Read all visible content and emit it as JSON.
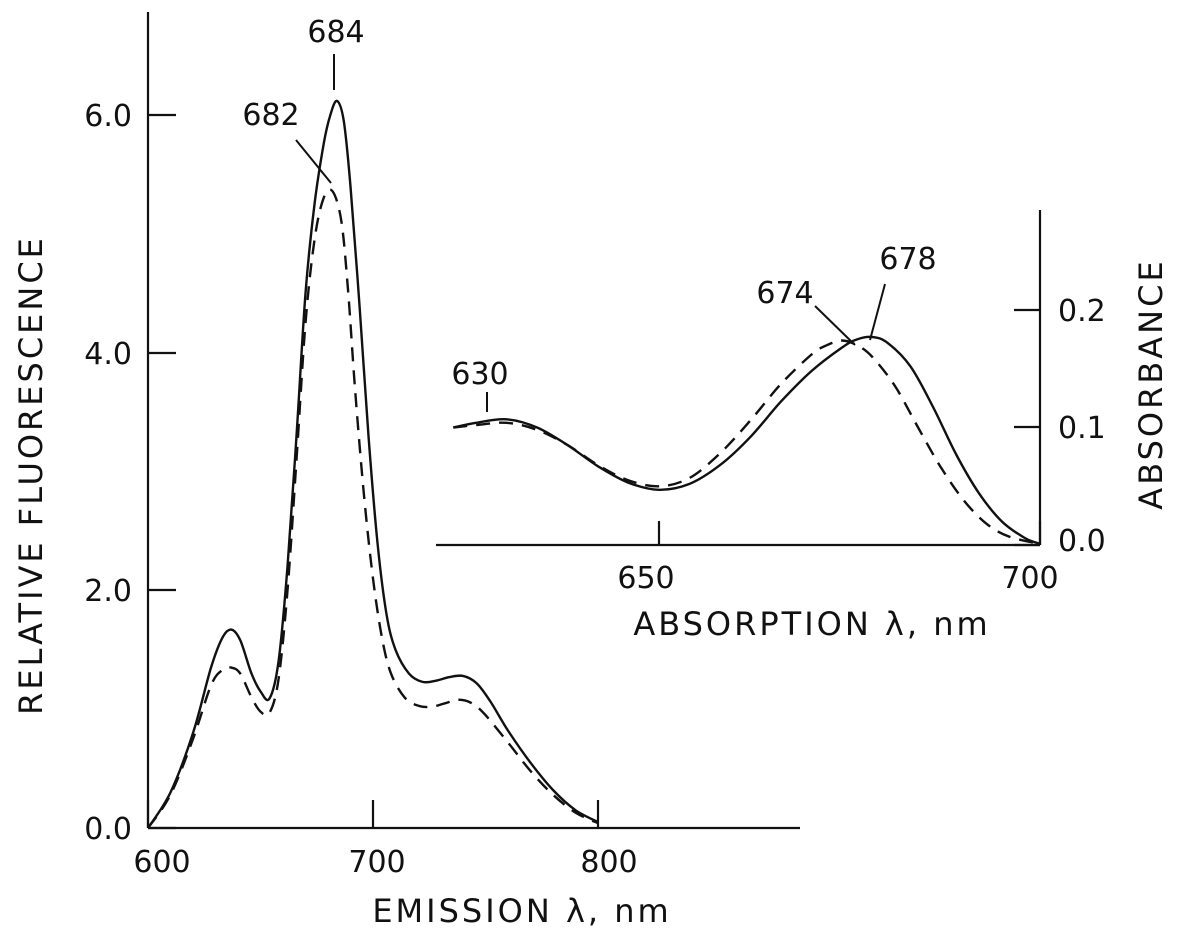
{
  "chart_data": [
    {
      "type": "line",
      "id": "emission",
      "xlabel": "EMISSION λ, nm",
      "ylabel": "RELATIVE FLUORESCENCE",
      "xlim": [
        600,
        870
      ],
      "ylim": [
        0,
        6.6
      ],
      "xticks": [
        600,
        700,
        800
      ],
      "xtick_labels": [
        "600",
        "700",
        "800"
      ],
      "yticks": [
        0,
        2,
        4,
        6
      ],
      "ytick_labels": [
        "0.0",
        "2.0",
        "4.0",
        "6.0"
      ],
      "grid": false,
      "series": [
        {
          "style": "solid",
          "x": [
            600,
            610,
            620,
            628,
            633,
            637,
            641,
            646,
            650,
            654,
            658,
            662,
            666,
            670,
            674,
            678,
            681,
            684,
            687,
            690,
            694,
            698,
            702,
            706,
            710,
            716,
            722,
            728,
            734,
            740,
            746,
            752,
            760,
            770,
            780,
            790,
            800
          ],
          "y": [
            0.0,
            0.3,
            0.8,
            1.35,
            1.6,
            1.67,
            1.58,
            1.3,
            1.15,
            1.09,
            1.4,
            2.2,
            3.3,
            4.5,
            5.25,
            5.75,
            6.0,
            6.12,
            5.95,
            5.4,
            4.4,
            3.3,
            2.4,
            1.8,
            1.5,
            1.3,
            1.23,
            1.24,
            1.27,
            1.28,
            1.22,
            1.07,
            0.82,
            0.55,
            0.32,
            0.15,
            0.05
          ]
        },
        {
          "style": "dashed",
          "x": [
            600,
            610,
            620,
            628,
            633,
            637,
            641,
            646,
            650,
            654,
            658,
            662,
            666,
            670,
            674,
            678,
            682,
            686,
            689,
            692,
            696,
            700,
            704,
            708,
            714,
            720,
            726,
            732,
            738,
            744,
            750,
            760,
            770,
            780,
            790,
            800
          ],
          "y": [
            0.0,
            0.28,
            0.75,
            1.2,
            1.33,
            1.35,
            1.3,
            1.1,
            0.98,
            0.97,
            1.25,
            2.0,
            3.1,
            4.25,
            4.95,
            5.3,
            5.36,
            5.1,
            4.5,
            3.7,
            2.8,
            2.1,
            1.6,
            1.3,
            1.1,
            1.03,
            1.02,
            1.05,
            1.08,
            1.05,
            0.95,
            0.72,
            0.48,
            0.28,
            0.13,
            0.04
          ]
        }
      ],
      "annotations": [
        {
          "text": "684",
          "x": 684,
          "y": 6.12
        },
        {
          "text": "682",
          "x": 682,
          "y": 5.36
        }
      ]
    },
    {
      "type": "line",
      "id": "absorption",
      "xlabel": "ABSORPTION λ, nm",
      "ylabel": "ABSORBANCE",
      "xlim": [
        620,
        700
      ],
      "ylim": [
        0,
        0.28
      ],
      "xticks": [
        650,
        700
      ],
      "xtick_labels": [
        "650",
        "700"
      ],
      "yticks": [
        0,
        0.1,
        0.2
      ],
      "ytick_labels": [
        "0.0",
        "0.1",
        "0.2"
      ],
      "yaxis_position": "right",
      "grid": false,
      "series": [
        {
          "style": "solid",
          "x": [
            623,
            626,
            630,
            634,
            638,
            642,
            646,
            650,
            654,
            658,
            662,
            666,
            670,
            674,
            676,
            678,
            680,
            683,
            686,
            689,
            692,
            695,
            698,
            700
          ],
          "y": [
            0.1,
            0.104,
            0.107,
            0.1,
            0.085,
            0.067,
            0.053,
            0.047,
            0.052,
            0.068,
            0.092,
            0.122,
            0.148,
            0.168,
            0.175,
            0.177,
            0.172,
            0.152,
            0.117,
            0.077,
            0.044,
            0.02,
            0.006,
            0.001
          ]
        },
        {
          "style": "dashed",
          "x": [
            623,
            626,
            630,
            634,
            638,
            642,
            646,
            650,
            654,
            658,
            662,
            666,
            670,
            672,
            674,
            676,
            678,
            681,
            684,
            687,
            690,
            693,
            696,
            700
          ],
          "y": [
            0.1,
            0.102,
            0.104,
            0.098,
            0.085,
            0.068,
            0.055,
            0.05,
            0.057,
            0.078,
            0.106,
            0.137,
            0.162,
            0.17,
            0.174,
            0.17,
            0.16,
            0.135,
            0.1,
            0.066,
            0.038,
            0.018,
            0.007,
            0.001
          ]
        }
      ],
      "annotations": [
        {
          "text": "630",
          "x": 630,
          "y": 0.107
        },
        {
          "text": "674",
          "x": 674,
          "y": 0.174
        },
        {
          "text": "678",
          "x": 678,
          "y": 0.177
        }
      ]
    }
  ]
}
